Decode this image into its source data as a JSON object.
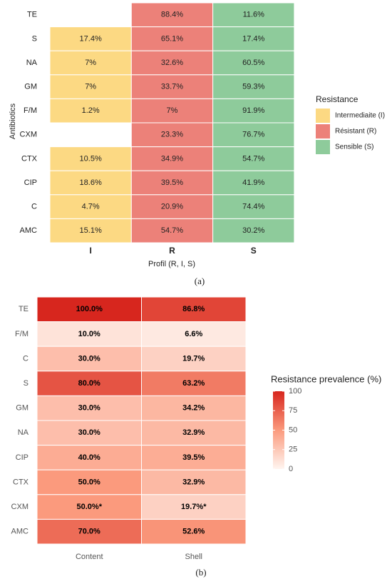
{
  "chart_data": [
    {
      "type": "tile",
      "panel_label": "(a)",
      "xlabel": "Profil (R, I, S)",
      "ylabel": "Antibiotics",
      "x_categories": [
        "I",
        "R",
        "S"
      ],
      "y_categories": [
        "TE",
        "S",
        "NA",
        "GM",
        "F/M",
        "CXM",
        "CTX",
        "CIP",
        "C",
        "AMC"
      ],
      "legend_title": "Resistance",
      "legend": "right",
      "series": [
        {
          "name": "Intermediaite (I)",
          "color": "#fcd983",
          "values": [
            null,
            17.4,
            7,
            7,
            1.2,
            null,
            10.5,
            18.6,
            4.7,
            15.1
          ],
          "value_labels": [
            null,
            "17.4%",
            "7%",
            "7%",
            "1.2%",
            null,
            "10.5%",
            "18.6%",
            "4.7%",
            "15.1%"
          ]
        },
        {
          "name": "Résistant (R)",
          "color": "#ec8179",
          "values": [
            88.4,
            65.1,
            32.6,
            33.7,
            7,
            23.3,
            34.9,
            39.5,
            20.9,
            54.7
          ],
          "value_labels": [
            "88.4%",
            "65.1%",
            "32.6%",
            "33.7%",
            "7%",
            "23.3%",
            "34.9%",
            "39.5%",
            "20.9%",
            "54.7%"
          ]
        },
        {
          "name": "Sensible (S)",
          "color": "#8ecb9b",
          "values": [
            11.6,
            17.4,
            60.5,
            59.3,
            91.9,
            76.7,
            54.7,
            41.9,
            74.4,
            30.2
          ],
          "value_labels": [
            "11.6%",
            "17.4%",
            "60.5%",
            "59.3%",
            "91.9%",
            "76.7%",
            "54.7%",
            "41.9%",
            "74.4%",
            "30.2%"
          ]
        }
      ]
    },
    {
      "type": "heatmap",
      "panel_label": "(b)",
      "x_categories": [
        "Content",
        "Shell"
      ],
      "y_categories": [
        "TE",
        "F/M",
        "C",
        "S",
        "GM",
        "NA",
        "CIP",
        "CTX",
        "CXM",
        "AMC"
      ],
      "legend_title": "Resistance prevalence (%)",
      "colorscale": [
        "#fff5f0",
        "#fb9a7d",
        "#d7261e"
      ],
      "clim": [
        0,
        100
      ],
      "cticks": [
        0,
        25,
        50,
        75,
        100
      ],
      "series": [
        {
          "name": "Content",
          "values": [
            100,
            10,
            30,
            80,
            30,
            30,
            40,
            50,
            50,
            70
          ],
          "value_labels": [
            "100.0%",
            "10.0%",
            "30.0%",
            "80.0%",
            "30.0%",
            "30.0%",
            "40.0%",
            "50.0%",
            "50.0%*",
            "70.0%"
          ]
        },
        {
          "name": "Shell",
          "values": [
            86.8,
            6.6,
            19.7,
            63.2,
            34.2,
            32.9,
            39.5,
            32.9,
            19.7,
            52.6
          ],
          "value_labels": [
            "86.8%",
            "6.6%",
            "19.7%",
            "63.2%",
            "34.2%",
            "32.9%",
            "39.5%",
            "32.9%",
            "19.7%*",
            "52.6%"
          ]
        }
      ]
    }
  ]
}
